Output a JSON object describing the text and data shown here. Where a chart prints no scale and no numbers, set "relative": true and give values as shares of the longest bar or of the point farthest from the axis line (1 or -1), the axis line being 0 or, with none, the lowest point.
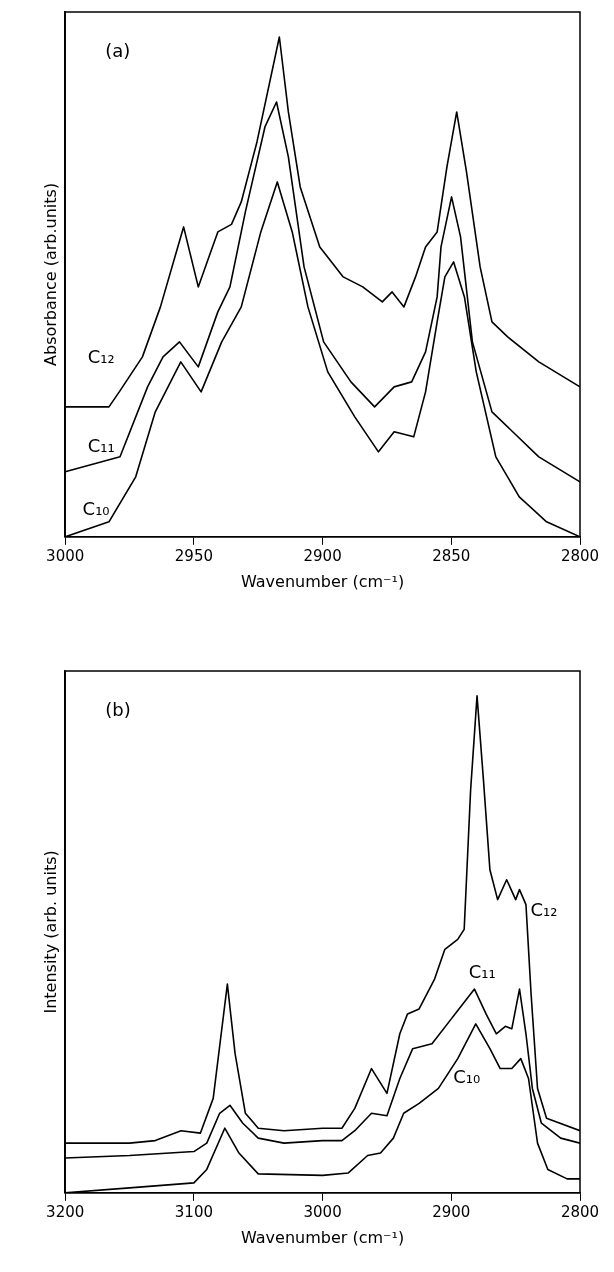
{
  "chart_data": [
    {
      "type": "line",
      "title": "(a)",
      "xlabel": "Wavenumber (cm⁻¹)",
      "ylabel": "Absorbance (arb.units)",
      "relative": true,
      "xlim": [
        3000,
        2800
      ],
      "xticks": [
        3000,
        2950,
        2900,
        2850,
        2800
      ],
      "grid": false,
      "legend": false,
      "marker": "none",
      "line_style": "solid",
      "series": [
        {
          "name": "C₁₂",
          "color": "#000000",
          "x": [
            3000,
            2983,
            2979,
            2970,
            2963,
            2954,
            2948.3,
            2940.7,
            2935.4,
            2931.6,
            2925.5,
            2916.8,
            2913.3,
            2908.7,
            2901.1,
            2892,
            2884.4,
            2876.8,
            2873,
            2868.4,
            2863.9,
            2860,
            2855.5,
            2851.7,
            2847.9,
            2844.1,
            2838.8,
            2834.2,
            2828.1,
            2816,
            2800
          ],
          "values": [
            0.26,
            0.26,
            0.29,
            0.36,
            0.46,
            0.62,
            0.5,
            0.61,
            0.625,
            0.67,
            0.79,
            1.0,
            0.85,
            0.7,
            0.58,
            0.52,
            0.5,
            0.47,
            0.49,
            0.46,
            0.52,
            0.58,
            0.61,
            0.74,
            0.85,
            0.73,
            0.54,
            0.43,
            0.4,
            0.35,
            0.3
          ]
        },
        {
          "name": "C₁₁",
          "color": "#000000",
          "x": [
            3000,
            2978.7,
            2968,
            2962,
            2955.6,
            2948.3,
            2940.7,
            2936,
            2930,
            2922.4,
            2917.9,
            2913.3,
            2907.2,
            2899.6,
            2889,
            2879.8,
            2872.2,
            2865.4,
            2860,
            2855.5,
            2854,
            2849.9,
            2846.4,
            2841.8,
            2834.2,
            2816,
            2800
          ],
          "values": [
            0.13,
            0.16,
            0.3,
            0.36,
            0.39,
            0.34,
            0.45,
            0.5,
            0.65,
            0.82,
            0.87,
            0.76,
            0.54,
            0.39,
            0.31,
            0.26,
            0.3,
            0.31,
            0.37,
            0.48,
            0.58,
            0.68,
            0.6,
            0.39,
            0.25,
            0.16,
            0.11
          ]
        },
        {
          "name": "C₁₀",
          "color": "#000000",
          "x": [
            3000,
            2983,
            2972.6,
            2965,
            2955.1,
            2947.2,
            2939.2,
            2931.6,
            2924,
            2917.6,
            2911.8,
            2905.7,
            2898,
            2887.5,
            2878.3,
            2872.2,
            2864.6,
            2860,
            2855.5,
            2852.5,
            2849.1,
            2844.9,
            2840.3,
            2832.7,
            2823.6,
            2813,
            2800
          ],
          "values": [
            0,
            0.03,
            0.12,
            0.25,
            0.35,
            0.29,
            0.39,
            0.46,
            0.61,
            0.71,
            0.61,
            0.46,
            0.33,
            0.24,
            0.17,
            0.21,
            0.2,
            0.29,
            0.43,
            0.52,
            0.55,
            0.48,
            0.33,
            0.16,
            0.08,
            0.03,
            0
          ]
        }
      ]
    },
    {
      "type": "line",
      "title": "(b)",
      "xlabel": "Wavenumber (cm⁻¹)",
      "ylabel": "Intensity (arb. units)",
      "relative": true,
      "xlim": [
        3200,
        2800
      ],
      "xticks": [
        3200,
        3100,
        3000,
        2900,
        2800
      ],
      "grid": false,
      "legend": false,
      "marker": "none",
      "line_style": "solid",
      "series": [
        {
          "name": "C₁₂",
          "color": "#000000",
          "x": [
            3200,
            3150,
            3130,
            3110,
            3095,
            3085,
            3074,
            3068,
            3060,
            3050,
            3030,
            3000,
            2985,
            2975,
            2962,
            2950,
            2940,
            2934,
            2925,
            2913,
            2905,
            2900,
            2895,
            2890,
            2885,
            2880,
            2875,
            2870,
            2864,
            2857,
            2850,
            2847,
            2842,
            2838,
            2833,
            2826,
            2800
          ],
          "values": [
            0.1,
            0.1,
            0.105,
            0.125,
            0.12,
            0.19,
            0.42,
            0.28,
            0.16,
            0.13,
            0.125,
            0.13,
            0.13,
            0.17,
            0.25,
            0.2,
            0.32,
            0.36,
            0.37,
            0.43,
            0.49,
            0.5,
            0.51,
            0.53,
            0.81,
            1.0,
            0.83,
            0.65,
            0.59,
            0.63,
            0.59,
            0.61,
            0.58,
            0.4,
            0.21,
            0.15,
            0.125
          ]
        },
        {
          "name": "C₁₁",
          "color": "#000000",
          "x": [
            3200,
            3150,
            3100,
            3090,
            3080,
            3072,
            3062,
            3050,
            3030,
            3000,
            2985,
            2975,
            2962,
            2950,
            2940,
            2930,
            2915,
            2900,
            2882,
            2873,
            2865,
            2858,
            2853,
            2847,
            2842,
            2837,
            2830,
            2815,
            2800
          ],
          "values": [
            0.07,
            0.075,
            0.083,
            0.1,
            0.16,
            0.176,
            0.14,
            0.11,
            0.1,
            0.105,
            0.105,
            0.125,
            0.16,
            0.155,
            0.23,
            0.29,
            0.3,
            0.35,
            0.41,
            0.36,
            0.32,
            0.335,
            0.33,
            0.41,
            0.32,
            0.21,
            0.14,
            0.11,
            0.1
          ]
        },
        {
          "name": "C₁₀",
          "color": "#000000",
          "x": [
            3200,
            3150,
            3120,
            3100,
            3090,
            3076,
            3065,
            3050,
            3000,
            2980,
            2965,
            2955,
            2945,
            2937,
            2925,
            2910,
            2895,
            2881,
            2870,
            2862,
            2853,
            2846,
            2840,
            2833,
            2825,
            2810,
            2800
          ],
          "values": [
            0,
            0.01,
            0.016,
            0.02,
            0.047,
            0.13,
            0.08,
            0.038,
            0.035,
            0.04,
            0.075,
            0.08,
            0.11,
            0.16,
            0.18,
            0.21,
            0.27,
            0.34,
            0.29,
            0.25,
            0.25,
            0.27,
            0.23,
            0.1,
            0.047,
            0.028,
            0.028
          ]
        }
      ]
    }
  ]
}
